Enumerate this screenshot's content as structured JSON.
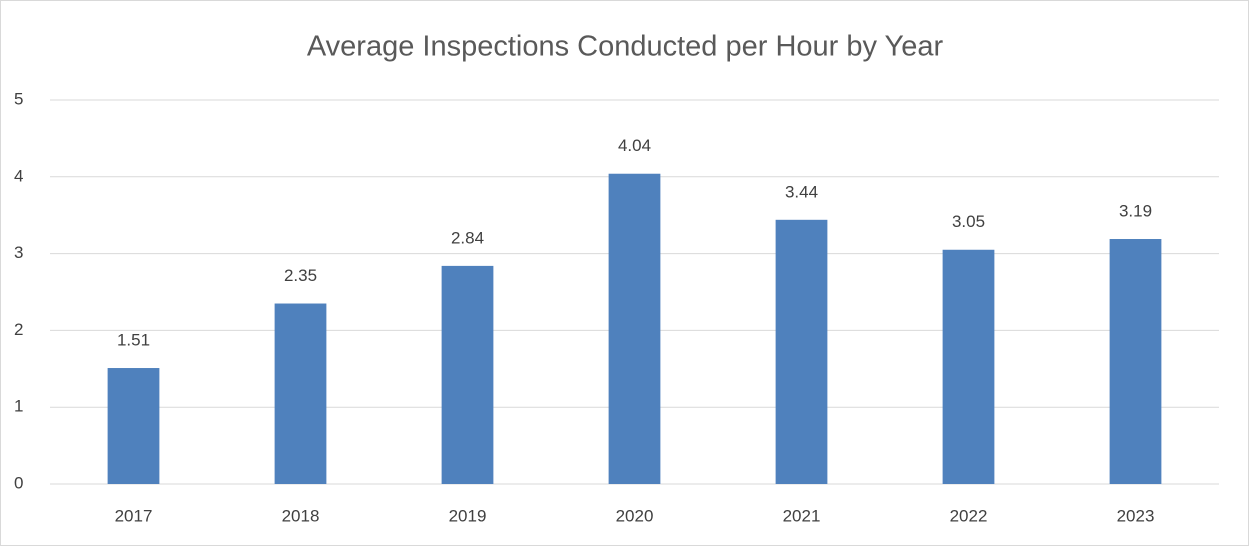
{
  "chart_data": {
    "type": "bar",
    "title": "Average Inspections Conducted per Hour by Year",
    "categories": [
      "2017",
      "2018",
      "2019",
      "2020",
      "2021",
      "2022",
      "2023"
    ],
    "values": [
      1.51,
      2.35,
      2.84,
      4.04,
      3.44,
      3.05,
      3.19
    ],
    "color": "#4f81bd",
    "ylim": [
      0,
      5
    ],
    "yticks": [
      0,
      1,
      2,
      3,
      4,
      5
    ],
    "grid": true
  }
}
